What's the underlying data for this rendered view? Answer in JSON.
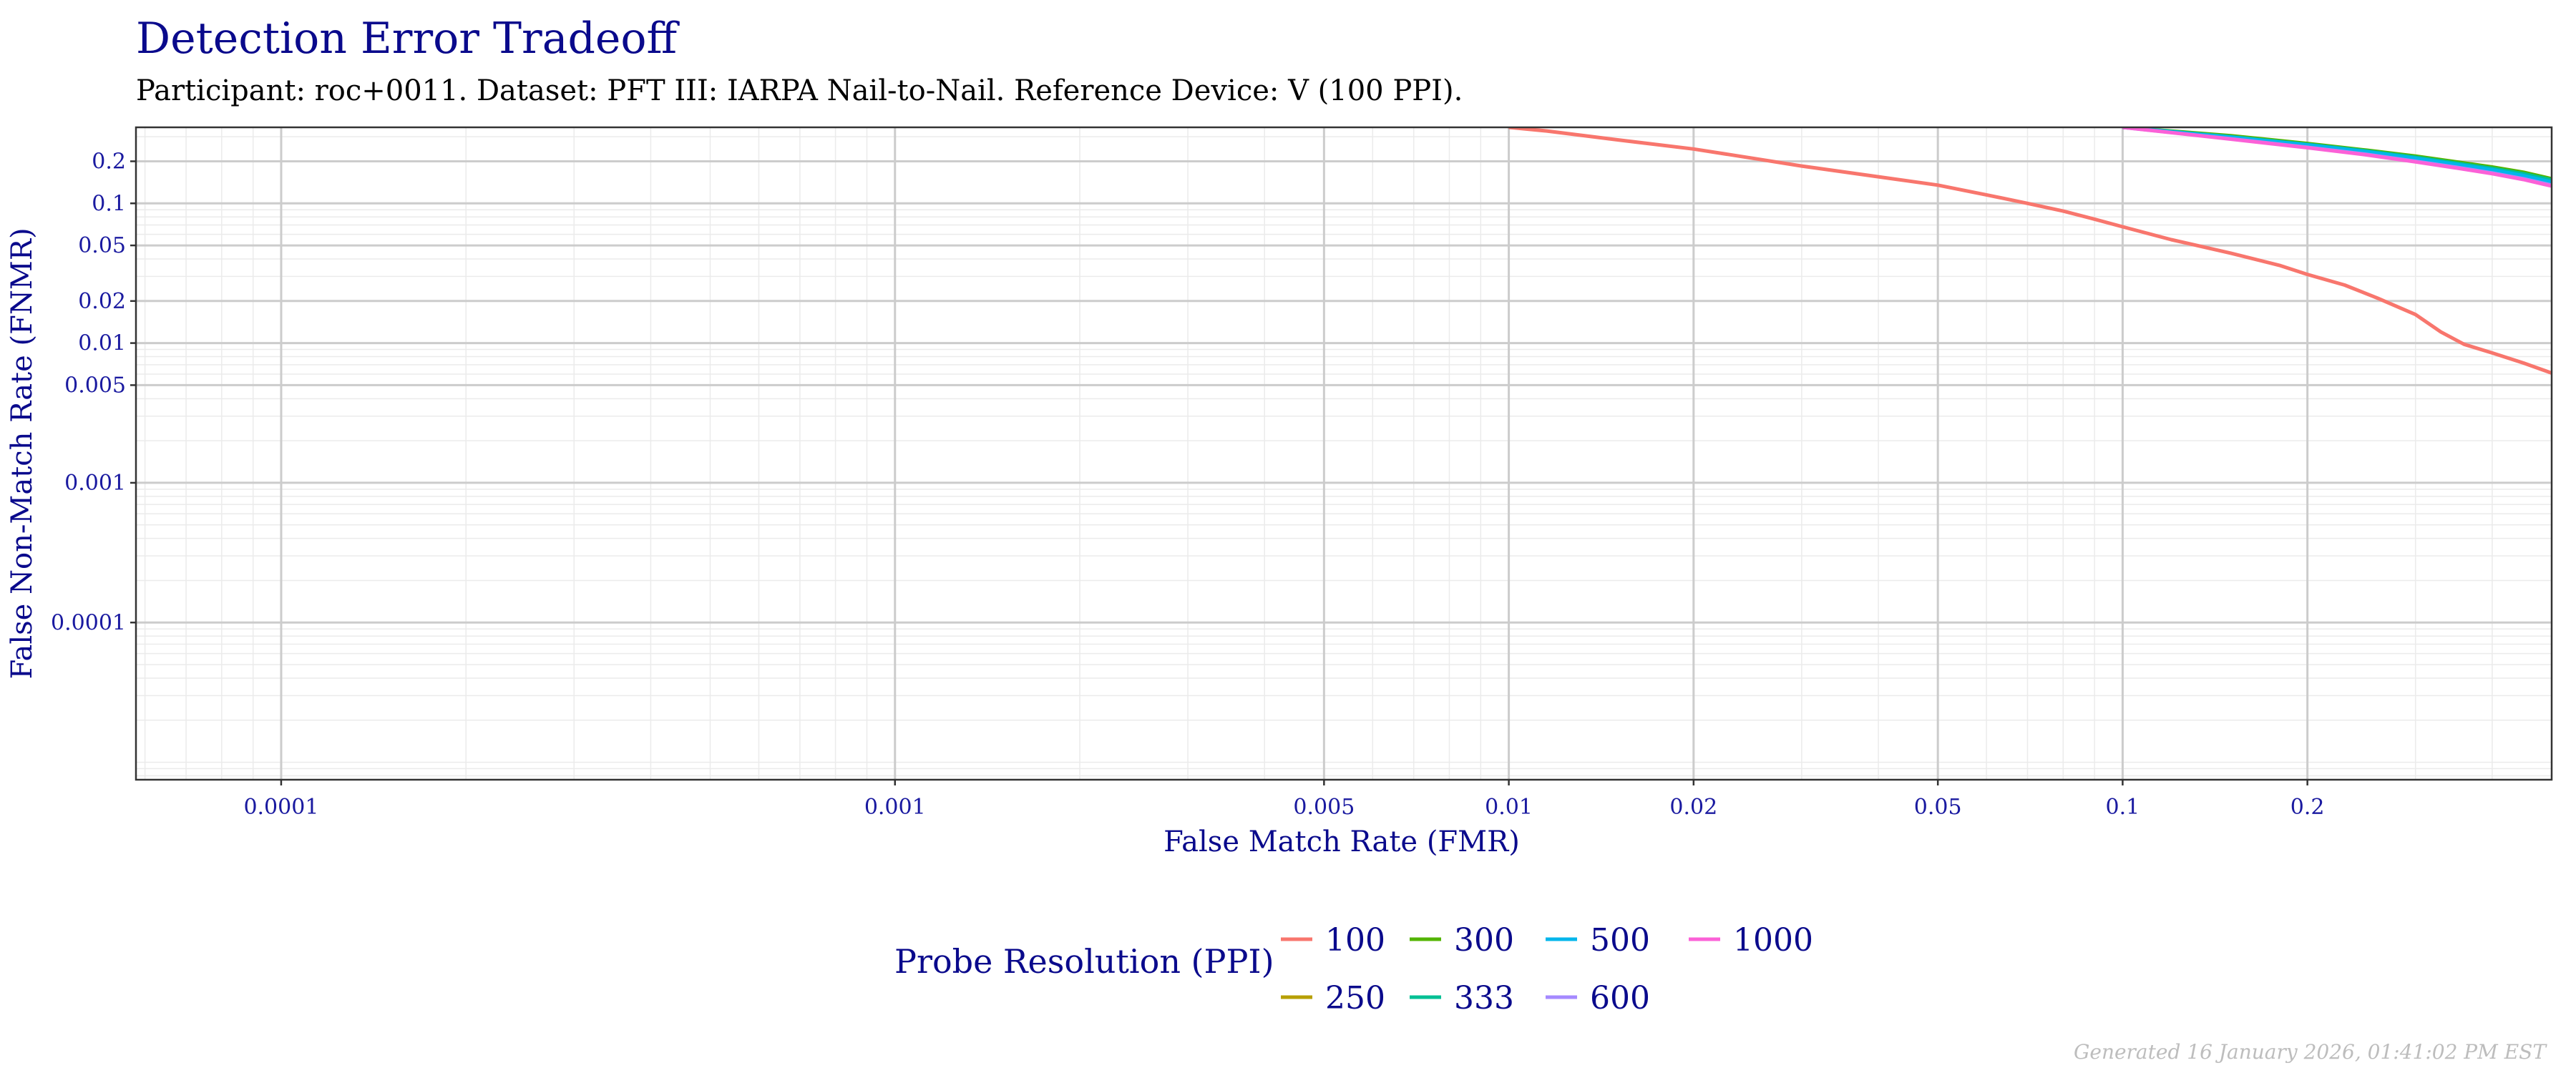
{
  "chart_data": {
    "type": "line",
    "title": "Detection Error Tradeoff",
    "subtitle": "Participant: roc+0011. Dataset: PFT III: IARPA Nail-to-Nail. Reference Device: V (100 PPI).",
    "xlabel": "False Match Rate (FMR)",
    "ylabel": "False Non-Match Rate (FNMR)",
    "x_scale": "log",
    "y_scale": "log",
    "xlim": [
      5.8e-05,
      0.5
    ],
    "ylim": [
      7.5e-06,
      0.35
    ],
    "x_ticks": [
      "0.0001",
      "0.001",
      "0.005",
      "0.01",
      "0.02",
      "0.05",
      "0.1",
      "0.2"
    ],
    "y_ticks": [
      "0.2",
      "0.1",
      "0.05",
      "0.02",
      "0.01",
      "0.005",
      "0.001",
      "0.0001"
    ],
    "grid": true,
    "legend_title": "Probe Resolution (PPI)",
    "legend_position": "bottom",
    "series": [
      {
        "name": "100",
        "color": "#f8766d",
        "x": [
          0.01,
          0.0115,
          0.015,
          0.02,
          0.025,
          0.03,
          0.04,
          0.05,
          0.06,
          0.07,
          0.08,
          0.09,
          0.1,
          0.12,
          0.15,
          0.18,
          0.2,
          0.23,
          0.26,
          0.3,
          0.33,
          0.36,
          0.4,
          0.45,
          0.5
        ],
        "y": [
          0.35,
          0.33,
          0.285,
          0.245,
          0.21,
          0.185,
          0.155,
          0.135,
          0.115,
          0.1,
          0.088,
          0.077,
          0.068,
          0.055,
          0.044,
          0.036,
          0.031,
          0.026,
          0.021,
          0.016,
          0.012,
          0.0098,
          0.0085,
          0.0072,
          0.0061
        ]
      },
      {
        "name": "250",
        "color": "#b79f00",
        "x": [
          0.1,
          0.15,
          0.2,
          0.25,
          0.3,
          0.35,
          0.4,
          0.45,
          0.5
        ],
        "y": [
          0.35,
          0.3,
          0.265,
          0.238,
          0.215,
          0.195,
          0.18,
          0.165,
          0.148
        ]
      },
      {
        "name": "300",
        "color": "#53b400",
        "x": [
          0.1,
          0.15,
          0.2,
          0.25,
          0.3,
          0.35,
          0.4,
          0.45,
          0.5
        ],
        "y": [
          0.35,
          0.305,
          0.268,
          0.24,
          0.218,
          0.198,
          0.182,
          0.167,
          0.15
        ]
      },
      {
        "name": "333",
        "color": "#00c094",
        "x": [
          0.1,
          0.15,
          0.2,
          0.25,
          0.3,
          0.35,
          0.4,
          0.45,
          0.5
        ],
        "y": [
          0.35,
          0.3,
          0.264,
          0.237,
          0.214,
          0.194,
          0.178,
          0.163,
          0.147
        ]
      },
      {
        "name": "500",
        "color": "#00b6eb",
        "x": [
          0.1,
          0.15,
          0.2,
          0.25,
          0.3,
          0.35,
          0.4,
          0.45,
          0.5
        ],
        "y": [
          0.35,
          0.298,
          0.262,
          0.234,
          0.21,
          0.19,
          0.174,
          0.158,
          0.142
        ]
      },
      {
        "name": "600",
        "color": "#a58aff",
        "x": [
          0.1,
          0.15,
          0.2,
          0.25,
          0.3,
          0.35,
          0.4,
          0.45,
          0.5
        ],
        "y": [
          0.35,
          0.29,
          0.252,
          0.224,
          0.2,
          0.181,
          0.165,
          0.15,
          0.135
        ]
      },
      {
        "name": "1000",
        "color": "#fb61d7",
        "x": [
          0.1,
          0.15,
          0.2,
          0.25,
          0.3,
          0.35,
          0.4,
          0.45,
          0.5
        ],
        "y": [
          0.35,
          0.288,
          0.25,
          0.222,
          0.198,
          0.179,
          0.163,
          0.148,
          0.133
        ]
      }
    ]
  },
  "footer": "Generated 16 January 2026, 01:41:02 PM EST"
}
